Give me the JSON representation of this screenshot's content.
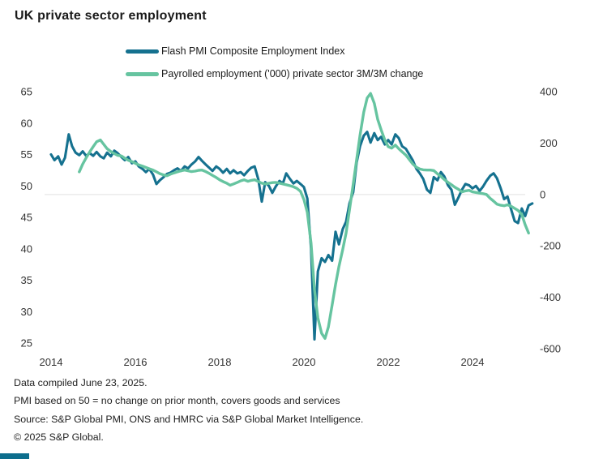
{
  "title": "UK private sector employment",
  "accent_color": "#0d6e8d",
  "legend": [
    {
      "label": "Flash PMI Composite Employment Index",
      "color": "#15718f"
    },
    {
      "label": "Payrolled employment ('000) private sector 3M/3M change",
      "color": "#66c4a0"
    }
  ],
  "footer": {
    "line1": "Data compiled June 23, 2025.",
    "line2": "PMI based on 50 = no change on prior month, covers goods and services",
    "line3": "Source: S&P Global PMI, ONS and HMRC via S&P Global Market Intelligence.",
    "line4": "© 2025 S&P Global."
  },
  "chart_data": {
    "type": "line",
    "title": "UK private sector employment",
    "x_ticks": [
      2014,
      2016,
      2018,
      2020,
      2022,
      2024
    ],
    "x_range": [
      2013.85,
      2025.6
    ],
    "grid": "single horizontal gridline at left 50 / right 0",
    "gridline_right_value": 0,
    "gridline_color": "#e9e9e9",
    "tick_label_color": "#333333",
    "left_axis": {
      "ticks": [
        65,
        60,
        55,
        50,
        45,
        40,
        35,
        30,
        25
      ],
      "min": 25,
      "max": 65
    },
    "right_axis": {
      "ticks": [
        400,
        200,
        0,
        -200,
        -400,
        -600
      ],
      "min": -600,
      "max": 400
    },
    "series": [
      {
        "name": "Flash PMI Composite Employment Index",
        "axis": "left",
        "color": "#15718f",
        "width": 3.1,
        "points": [
          [
            2014.0,
            55.0
          ],
          [
            2014.08,
            54.1
          ],
          [
            2014.17,
            54.7
          ],
          [
            2014.25,
            53.4
          ],
          [
            2014.33,
            54.5
          ],
          [
            2014.42,
            58.2
          ],
          [
            2014.5,
            56.3
          ],
          [
            2014.58,
            55.3
          ],
          [
            2014.67,
            54.9
          ],
          [
            2014.75,
            55.5
          ],
          [
            2014.83,
            54.8
          ],
          [
            2014.92,
            55.2
          ],
          [
            2015.0,
            54.8
          ],
          [
            2015.08,
            55.4
          ],
          [
            2015.17,
            54.7
          ],
          [
            2015.25,
            54.4
          ],
          [
            2015.33,
            55.3
          ],
          [
            2015.42,
            54.7
          ],
          [
            2015.5,
            55.6
          ],
          [
            2015.58,
            55.2
          ],
          [
            2015.67,
            54.6
          ],
          [
            2015.75,
            54.1
          ],
          [
            2015.83,
            54.6
          ],
          [
            2015.92,
            53.6
          ],
          [
            2016.0,
            53.9
          ],
          [
            2016.08,
            53.1
          ],
          [
            2016.17,
            52.7
          ],
          [
            2016.25,
            52.2
          ],
          [
            2016.33,
            52.7
          ],
          [
            2016.42,
            51.8
          ],
          [
            2016.5,
            50.3
          ],
          [
            2016.58,
            50.9
          ],
          [
            2016.67,
            51.4
          ],
          [
            2016.75,
            51.9
          ],
          [
            2016.83,
            52.1
          ],
          [
            2016.92,
            52.5
          ],
          [
            2017.0,
            52.8
          ],
          [
            2017.08,
            52.4
          ],
          [
            2017.17,
            53.1
          ],
          [
            2017.25,
            52.8
          ],
          [
            2017.33,
            53.4
          ],
          [
            2017.42,
            53.9
          ],
          [
            2017.5,
            54.6
          ],
          [
            2017.58,
            54.0
          ],
          [
            2017.67,
            53.4
          ],
          [
            2017.75,
            52.9
          ],
          [
            2017.83,
            52.4
          ],
          [
            2017.92,
            53.1
          ],
          [
            2018.0,
            52.7
          ],
          [
            2018.08,
            52.1
          ],
          [
            2018.17,
            52.7
          ],
          [
            2018.25,
            52.0
          ],
          [
            2018.33,
            52.5
          ],
          [
            2018.42,
            52.0
          ],
          [
            2018.5,
            52.2
          ],
          [
            2018.58,
            51.7
          ],
          [
            2018.67,
            52.4
          ],
          [
            2018.75,
            52.9
          ],
          [
            2018.83,
            53.1
          ],
          [
            2018.92,
            51.0
          ],
          [
            2019.0,
            47.5
          ],
          [
            2019.08,
            50.6
          ],
          [
            2019.17,
            50.0
          ],
          [
            2019.25,
            48.9
          ],
          [
            2019.33,
            49.9
          ],
          [
            2019.42,
            50.8
          ],
          [
            2019.5,
            50.4
          ],
          [
            2019.58,
            52.0
          ],
          [
            2019.67,
            51.1
          ],
          [
            2019.75,
            50.4
          ],
          [
            2019.83,
            50.8
          ],
          [
            2019.92,
            50.3
          ],
          [
            2020.0,
            49.8
          ],
          [
            2020.08,
            48.0
          ],
          [
            2020.17,
            40.0
          ],
          [
            2020.25,
            25.6
          ],
          [
            2020.33,
            36.4
          ],
          [
            2020.42,
            38.5
          ],
          [
            2020.5,
            37.9
          ],
          [
            2020.58,
            39.0
          ],
          [
            2020.67,
            38.1
          ],
          [
            2020.75,
            42.7
          ],
          [
            2020.83,
            40.7
          ],
          [
            2020.92,
            43.1
          ],
          [
            2021.0,
            44.3
          ],
          [
            2021.08,
            47.2
          ],
          [
            2021.17,
            49.0
          ],
          [
            2021.25,
            53.7
          ],
          [
            2021.33,
            56.3
          ],
          [
            2021.42,
            58.0
          ],
          [
            2021.5,
            58.6
          ],
          [
            2021.58,
            56.9
          ],
          [
            2021.67,
            58.4
          ],
          [
            2021.75,
            57.3
          ],
          [
            2021.83,
            57.8
          ],
          [
            2021.92,
            56.6
          ],
          [
            2022.0,
            57.3
          ],
          [
            2022.08,
            56.6
          ],
          [
            2022.17,
            58.2
          ],
          [
            2022.25,
            57.6
          ],
          [
            2022.33,
            56.3
          ],
          [
            2022.42,
            55.9
          ],
          [
            2022.5,
            55.0
          ],
          [
            2022.58,
            54.1
          ],
          [
            2022.67,
            52.7
          ],
          [
            2022.75,
            52.0
          ],
          [
            2022.83,
            51.1
          ],
          [
            2022.92,
            49.4
          ],
          [
            2023.0,
            48.9
          ],
          [
            2023.08,
            51.4
          ],
          [
            2023.17,
            50.9
          ],
          [
            2023.25,
            52.2
          ],
          [
            2023.33,
            51.5
          ],
          [
            2023.42,
            50.1
          ],
          [
            2023.5,
            49.4
          ],
          [
            2023.58,
            47.0
          ],
          [
            2023.67,
            48.2
          ],
          [
            2023.75,
            49.4
          ],
          [
            2023.83,
            50.3
          ],
          [
            2023.92,
            50.1
          ],
          [
            2024.0,
            49.6
          ],
          [
            2024.08,
            50.0
          ],
          [
            2024.17,
            49.2
          ],
          [
            2024.25,
            49.9
          ],
          [
            2024.33,
            50.8
          ],
          [
            2024.42,
            51.6
          ],
          [
            2024.5,
            52.0
          ],
          [
            2024.58,
            51.2
          ],
          [
            2024.67,
            49.6
          ],
          [
            2024.75,
            47.9
          ],
          [
            2024.83,
            48.3
          ],
          [
            2024.92,
            46.2
          ],
          [
            2025.0,
            44.4
          ],
          [
            2025.08,
            44.1
          ],
          [
            2025.17,
            46.4
          ],
          [
            2025.25,
            45.2
          ],
          [
            2025.33,
            46.9
          ],
          [
            2025.42,
            47.2
          ]
        ]
      },
      {
        "name": "Payrolled employment ('000) private sector 3M/3M change",
        "axis": "right",
        "color": "#66c4a0",
        "width": 3.4,
        "points": [
          [
            2014.67,
            88
          ],
          [
            2014.75,
            118
          ],
          [
            2014.83,
            142
          ],
          [
            2014.92,
            166
          ],
          [
            2015.0,
            186
          ],
          [
            2015.08,
            205
          ],
          [
            2015.17,
            212
          ],
          [
            2015.25,
            195
          ],
          [
            2015.33,
            178
          ],
          [
            2015.42,
            167
          ],
          [
            2015.5,
            159
          ],
          [
            2015.58,
            152
          ],
          [
            2015.67,
            150
          ],
          [
            2015.75,
            141
          ],
          [
            2015.83,
            133
          ],
          [
            2015.92,
            128
          ],
          [
            2016.0,
            121
          ],
          [
            2016.08,
            115
          ],
          [
            2016.17,
            110
          ],
          [
            2016.25,
            105
          ],
          [
            2016.33,
            100
          ],
          [
            2016.42,
            95
          ],
          [
            2016.5,
            88
          ],
          [
            2016.58,
            81
          ],
          [
            2016.67,
            76
          ],
          [
            2016.75,
            73
          ],
          [
            2016.83,
            79
          ],
          [
            2016.92,
            84
          ],
          [
            2017.0,
            88
          ],
          [
            2017.08,
            92
          ],
          [
            2017.17,
            95
          ],
          [
            2017.25,
            92
          ],
          [
            2017.33,
            89
          ],
          [
            2017.42,
            91
          ],
          [
            2017.5,
            94
          ],
          [
            2017.58,
            95
          ],
          [
            2017.67,
            89
          ],
          [
            2017.75,
            82
          ],
          [
            2017.83,
            74
          ],
          [
            2017.92,
            66
          ],
          [
            2018.0,
            57
          ],
          [
            2018.08,
            50
          ],
          [
            2018.17,
            44
          ],
          [
            2018.25,
            36
          ],
          [
            2018.33,
            41
          ],
          [
            2018.42,
            47
          ],
          [
            2018.5,
            53
          ],
          [
            2018.58,
            57
          ],
          [
            2018.67,
            51
          ],
          [
            2018.75,
            55
          ],
          [
            2018.83,
            57
          ],
          [
            2018.92,
            50
          ],
          [
            2019.0,
            44
          ],
          [
            2019.08,
            41
          ],
          [
            2019.17,
            44
          ],
          [
            2019.25,
            46
          ],
          [
            2019.33,
            47
          ],
          [
            2019.42,
            44
          ],
          [
            2019.5,
            41
          ],
          [
            2019.58,
            38
          ],
          [
            2019.67,
            34
          ],
          [
            2019.75,
            30
          ],
          [
            2019.83,
            24
          ],
          [
            2019.92,
            12
          ],
          [
            2020.0,
            -20
          ],
          [
            2020.08,
            -70
          ],
          [
            2020.17,
            -190
          ],
          [
            2020.25,
            -370
          ],
          [
            2020.33,
            -480
          ],
          [
            2020.42,
            -540
          ],
          [
            2020.5,
            -560
          ],
          [
            2020.58,
            -515
          ],
          [
            2020.67,
            -430
          ],
          [
            2020.75,
            -350
          ],
          [
            2020.83,
            -280
          ],
          [
            2020.92,
            -215
          ],
          [
            2021.0,
            -150
          ],
          [
            2021.08,
            -60
          ],
          [
            2021.17,
            40
          ],
          [
            2021.25,
            135
          ],
          [
            2021.33,
            230
          ],
          [
            2021.42,
            320
          ],
          [
            2021.5,
            375
          ],
          [
            2021.58,
            393
          ],
          [
            2021.67,
            355
          ],
          [
            2021.75,
            292
          ],
          [
            2021.83,
            252
          ],
          [
            2021.92,
            212
          ],
          [
            2022.0,
            186
          ],
          [
            2022.08,
            180
          ],
          [
            2022.17,
            192
          ],
          [
            2022.25,
            178
          ],
          [
            2022.33,
            166
          ],
          [
            2022.42,
            153
          ],
          [
            2022.5,
            136
          ],
          [
            2022.58,
            119
          ],
          [
            2022.67,
            106
          ],
          [
            2022.75,
            99
          ],
          [
            2022.83,
            96
          ],
          [
            2022.92,
            95
          ],
          [
            2023.0,
            95
          ],
          [
            2023.08,
            93
          ],
          [
            2023.17,
            80
          ],
          [
            2023.25,
            70
          ],
          [
            2023.33,
            58
          ],
          [
            2023.42,
            47
          ],
          [
            2023.5,
            38
          ],
          [
            2023.58,
            28
          ],
          [
            2023.67,
            20
          ],
          [
            2023.75,
            10
          ],
          [
            2023.83,
            14
          ],
          [
            2023.92,
            16
          ],
          [
            2024.0,
            10
          ],
          [
            2024.08,
            8
          ],
          [
            2024.17,
            5
          ],
          [
            2024.25,
            3
          ],
          [
            2024.33,
            0
          ],
          [
            2024.42,
            -15
          ],
          [
            2024.5,
            -26
          ],
          [
            2024.58,
            -38
          ],
          [
            2024.67,
            -42
          ],
          [
            2024.75,
            -44
          ],
          [
            2024.83,
            -40
          ],
          [
            2024.92,
            -46
          ],
          [
            2025.0,
            -54
          ],
          [
            2025.08,
            -62
          ],
          [
            2025.17,
            -78
          ],
          [
            2025.25,
            -118
          ],
          [
            2025.33,
            -150
          ]
        ]
      }
    ]
  }
}
